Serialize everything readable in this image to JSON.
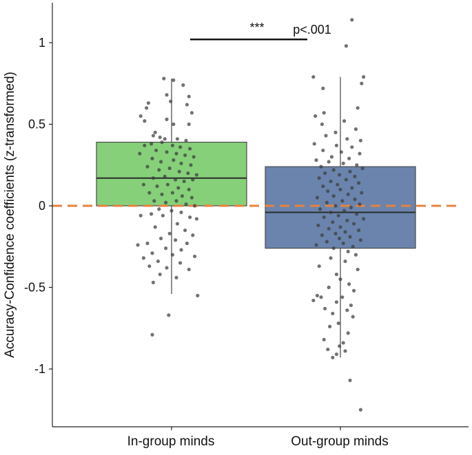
{
  "chart_data": {
    "type": "boxplot",
    "title": "",
    "xlabel": "",
    "ylabel": "Accuracy-Confidence coefficients (z-transformed)",
    "ylim": [
      -1.32,
      1.27
    ],
    "yticks": [
      -1,
      -0.5,
      0,
      0.5,
      1
    ],
    "ytick_labels": [
      "-1",
      "-0.5",
      "0",
      "0.5",
      "1"
    ],
    "grid": false,
    "reference_line": {
      "y": 0,
      "color": "#e8823e",
      "style": "dashed"
    },
    "categories": [
      "In-group minds",
      "Out-group minds"
    ],
    "boxes": [
      {
        "category": "In-group minds",
        "color": "#86d07a",
        "whisker_low": -0.54,
        "q1": 0.0,
        "median": 0.17,
        "q3": 0.39,
        "whisker_high": 0.78,
        "points": [
          [
            -0.08,
            0.78
          ],
          [
            0.02,
            0.77
          ],
          [
            0.12,
            0.74
          ],
          [
            -0.05,
            0.68
          ],
          [
            0.18,
            0.67
          ],
          [
            -0.24,
            0.63
          ],
          [
            0.16,
            0.62
          ],
          [
            -0.26,
            0.6
          ],
          [
            -0.01,
            0.64
          ],
          [
            0.21,
            0.57
          ],
          [
            -0.32,
            0.55
          ],
          [
            -0.28,
            0.52
          ],
          [
            -0.05,
            0.53
          ],
          [
            0.02,
            0.5
          ],
          [
            0.18,
            0.5
          ],
          [
            -0.17,
            0.45
          ],
          [
            -0.19,
            0.43
          ],
          [
            -0.12,
            0.42
          ],
          [
            -0.07,
            0.41
          ],
          [
            0.06,
            0.41
          ],
          [
            0.15,
            0.4
          ],
          [
            -0.28,
            0.37
          ],
          [
            -0.21,
            0.38
          ],
          [
            -0.1,
            0.39
          ],
          [
            0.01,
            0.37
          ],
          [
            0.09,
            0.36
          ],
          [
            0.19,
            0.35
          ],
          [
            -0.33,
            0.32
          ],
          [
            -0.16,
            0.34
          ],
          [
            -0.05,
            0.33
          ],
          [
            0.05,
            0.32
          ],
          [
            0.14,
            0.31
          ],
          [
            0.23,
            0.3
          ],
          [
            -0.2,
            0.29
          ],
          [
            -0.11,
            0.27
          ],
          [
            0.02,
            0.28
          ],
          [
            0.1,
            0.26
          ],
          [
            0.2,
            0.25
          ],
          [
            -0.25,
            0.24
          ],
          [
            -0.13,
            0.22
          ],
          [
            -0.02,
            0.23
          ],
          [
            0.08,
            0.21
          ],
          [
            0.17,
            0.2
          ],
          [
            0.26,
            0.19
          ],
          [
            -0.19,
            0.17
          ],
          [
            -0.07,
            0.18
          ],
          [
            0.04,
            0.16
          ],
          [
            0.13,
            0.15
          ],
          [
            0.22,
            0.16
          ],
          [
            -0.29,
            0.13
          ],
          [
            -0.15,
            0.12
          ],
          [
            -0.04,
            0.13
          ],
          [
            0.07,
            0.11
          ],
          [
            0.18,
            0.1
          ],
          [
            -0.23,
            0.08
          ],
          [
            -0.1,
            0.07
          ],
          [
            0.01,
            0.08
          ],
          [
            0.11,
            0.06
          ],
          [
            0.21,
            0.05
          ],
          [
            -0.18,
            0.03
          ],
          [
            -0.06,
            0.02
          ],
          [
            0.05,
            0.03
          ],
          [
            0.15,
            0.01
          ],
          [
            0.24,
            0.0
          ],
          [
            -0.13,
            -0.02
          ],
          [
            0.0,
            -0.03
          ],
          [
            0.1,
            -0.04
          ],
          [
            -0.21,
            -0.05
          ],
          [
            -0.09,
            -0.06
          ],
          [
            0.19,
            -0.07
          ],
          [
            -0.32,
            -0.06
          ],
          [
            0.26,
            -0.08
          ],
          [
            0.06,
            -0.11
          ],
          [
            -0.17,
            -0.13
          ],
          [
            0.14,
            -0.15
          ],
          [
            -0.02,
            -0.17
          ],
          [
            0.22,
            -0.18
          ],
          [
            -0.11,
            -0.2
          ],
          [
            0.04,
            -0.21
          ],
          [
            -0.25,
            -0.23
          ],
          [
            0.16,
            -0.23
          ],
          [
            -0.35,
            -0.24
          ],
          [
            -0.06,
            -0.26
          ],
          [
            0.1,
            -0.27
          ],
          [
            -0.2,
            -0.29
          ],
          [
            0.01,
            -0.3
          ],
          [
            0.24,
            -0.31
          ],
          [
            -0.29,
            -0.32
          ],
          [
            -0.14,
            -0.34
          ],
          [
            0.09,
            -0.35
          ],
          [
            -0.23,
            -0.37
          ],
          [
            -0.05,
            -0.38
          ],
          [
            0.18,
            -0.39
          ],
          [
            -0.12,
            -0.42
          ],
          [
            0.05,
            -0.44
          ],
          [
            -0.19,
            -0.47
          ],
          [
            0.27,
            -0.55
          ],
          [
            -0.03,
            -0.67
          ],
          [
            -0.2,
            -0.79
          ]
        ]
      },
      {
        "category": "Out-group minds",
        "color": "#6a84ad",
        "whisker_low": -0.93,
        "q1": -0.26,
        "median": -0.04,
        "q3": 0.24,
        "whisker_high": 0.79,
        "points": [
          [
            0.12,
            1.14
          ],
          [
            0.06,
            0.98
          ],
          [
            0.24,
            0.79
          ],
          [
            -0.28,
            0.79
          ],
          [
            0.22,
            0.75
          ],
          [
            -0.18,
            0.72
          ],
          [
            0.18,
            0.6
          ],
          [
            -0.17,
            0.57
          ],
          [
            -0.26,
            0.55
          ],
          [
            0.04,
            0.52
          ],
          [
            -0.19,
            0.5
          ],
          [
            0.16,
            0.47
          ],
          [
            -0.05,
            0.45
          ],
          [
            -0.15,
            0.43
          ],
          [
            0.07,
            0.41
          ],
          [
            0.21,
            0.4
          ],
          [
            -0.27,
            0.38
          ],
          [
            -0.04,
            0.37
          ],
          [
            0.12,
            0.36
          ],
          [
            -0.18,
            0.34
          ],
          [
            0.01,
            0.33
          ],
          [
            0.2,
            0.32
          ],
          [
            -0.09,
            0.3
          ],
          [
            0.09,
            0.29
          ],
          [
            -0.25,
            0.28
          ],
          [
            -0.12,
            0.27
          ],
          [
            0.03,
            0.26
          ],
          [
            0.17,
            0.25
          ],
          [
            -0.2,
            0.24
          ],
          [
            0.23,
            0.23
          ],
          [
            -0.07,
            0.22
          ],
          [
            0.1,
            0.21
          ],
          [
            -0.16,
            0.2
          ],
          [
            -0.01,
            0.19
          ],
          [
            0.15,
            0.18
          ],
          [
            -0.22,
            0.17
          ],
          [
            0.06,
            0.16
          ],
          [
            -0.1,
            0.15
          ],
          [
            0.19,
            0.14
          ],
          [
            -0.03,
            0.13
          ],
          [
            -0.18,
            0.12
          ],
          [
            0.12,
            0.11
          ],
          [
            0.0,
            0.1
          ],
          [
            -0.13,
            0.09
          ],
          [
            0.22,
            0.08
          ],
          [
            0.08,
            0.07
          ],
          [
            -0.07,
            0.06
          ],
          [
            -0.24,
            0.05
          ],
          [
            0.15,
            0.04
          ],
          [
            0.02,
            0.03
          ],
          [
            -0.14,
            0.02
          ],
          [
            0.2,
            0.01
          ],
          [
            -0.05,
            0.0
          ],
          [
            0.11,
            -0.01
          ],
          [
            -0.21,
            -0.02
          ],
          [
            0.04,
            -0.03
          ],
          [
            -0.1,
            -0.04
          ],
          [
            0.17,
            -0.05
          ],
          [
            -0.02,
            -0.06
          ],
          [
            -0.17,
            -0.07
          ],
          [
            0.24,
            -0.08
          ],
          [
            0.07,
            -0.09
          ],
          [
            -0.08,
            -0.1
          ],
          [
            0.14,
            -0.11
          ],
          [
            -0.23,
            -0.12
          ],
          [
            0.0,
            -0.13
          ],
          [
            -0.12,
            -0.14
          ],
          [
            0.19,
            -0.15
          ],
          [
            0.05,
            -0.16
          ],
          [
            -0.05,
            -0.17
          ],
          [
            -0.19,
            -0.18
          ],
          [
            0.1,
            -0.19
          ],
          [
            -0.01,
            -0.2
          ],
          [
            0.21,
            -0.21
          ],
          [
            -0.14,
            -0.22
          ],
          [
            0.03,
            -0.23
          ],
          [
            -0.25,
            -0.24
          ],
          [
            0.13,
            -0.25
          ],
          [
            -0.07,
            -0.26
          ],
          [
            0.08,
            -0.28
          ],
          [
            0.16,
            -0.3
          ],
          [
            -0.1,
            -0.32
          ],
          [
            0.05,
            -0.34
          ],
          [
            -0.22,
            -0.37
          ],
          [
            0.18,
            -0.39
          ],
          [
            -0.04,
            -0.42
          ],
          [
            0.0,
            -0.45
          ],
          [
            0.09,
            -0.48
          ],
          [
            -0.12,
            -0.5
          ],
          [
            0.14,
            -0.52
          ],
          [
            -0.24,
            -0.55
          ],
          [
            -0.2,
            -0.56
          ],
          [
            0.02,
            -0.56
          ],
          [
            -0.28,
            -0.58
          ],
          [
            -0.04,
            -0.59
          ],
          [
            0.11,
            -0.61
          ],
          [
            -0.16,
            -0.63
          ],
          [
            0.07,
            -0.64
          ],
          [
            -0.08,
            -0.66
          ],
          [
            0.13,
            -0.68
          ],
          [
            -0.02,
            -0.72
          ],
          [
            -0.11,
            -0.74
          ],
          [
            0.08,
            -0.78
          ],
          [
            -0.17,
            -0.82
          ],
          [
            0.03,
            -0.84
          ],
          [
            -0.01,
            -0.86
          ],
          [
            -0.13,
            -0.88
          ],
          [
            0.05,
            -0.89
          ],
          [
            -0.04,
            -0.91
          ],
          [
            -0.08,
            -0.93
          ],
          [
            0.1,
            -1.07
          ],
          [
            0.21,
            -1.25
          ]
        ]
      }
    ],
    "significance": {
      "from": "In-group minds",
      "to": "Out-group minds",
      "y": 1.02,
      "stars": "***",
      "p_label": "p<.001"
    }
  }
}
